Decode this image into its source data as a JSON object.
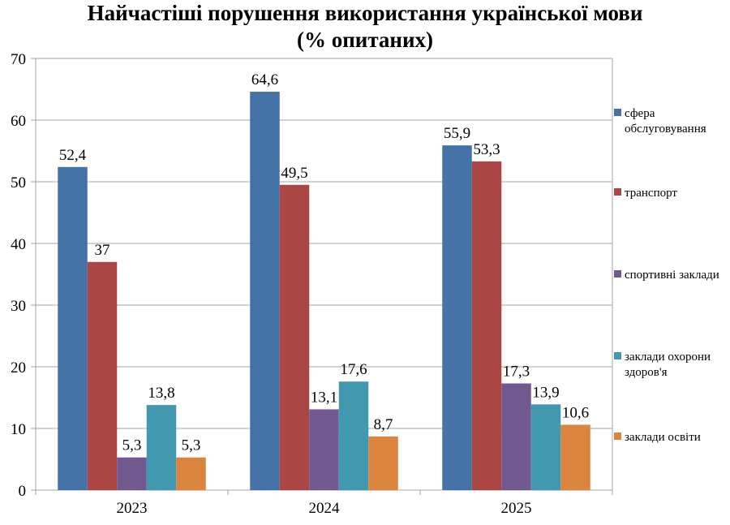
{
  "chart_data": {
    "type": "bar",
    "title_line1": "Найчастіші порушення використання української мови",
    "title_line2": "(% опитаних)",
    "categories": [
      "2023",
      "2024",
      "2025"
    ],
    "series": [
      {
        "name": "сфера обслуговування",
        "color": "#4572A7",
        "values": [
          52.4,
          64.6,
          55.9
        ],
        "labels": [
          "52,4",
          "64,6",
          "55,9"
        ]
      },
      {
        "name": "транспорт",
        "color": "#AA4643",
        "values": [
          37,
          49.5,
          53.3
        ],
        "labels": [
          "37",
          "49,5",
          "53,3"
        ]
      },
      {
        "name": "спортивні заклади",
        "color": "#71588F",
        "values": [
          5.3,
          13.1,
          17.3
        ],
        "labels": [
          "5,3",
          "13,1",
          "17,3"
        ]
      },
      {
        "name": "заклади охорони здоров'я",
        "color": "#4198AF",
        "values": [
          13.8,
          17.6,
          13.9
        ],
        "labels": [
          "13,8",
          "17,6",
          "13,9"
        ]
      },
      {
        "name": "заклади освіти",
        "color": "#DB843D",
        "values": [
          5.3,
          8.7,
          10.6
        ],
        "labels": [
          "5,3",
          "8,7",
          "10,6"
        ]
      }
    ],
    "ylim": [
      0,
      70
    ],
    "yticks": [
      "0",
      "10",
      "20",
      "30",
      "40",
      "50",
      "60",
      "70"
    ],
    "grid": true,
    "legend_position": "right"
  }
}
